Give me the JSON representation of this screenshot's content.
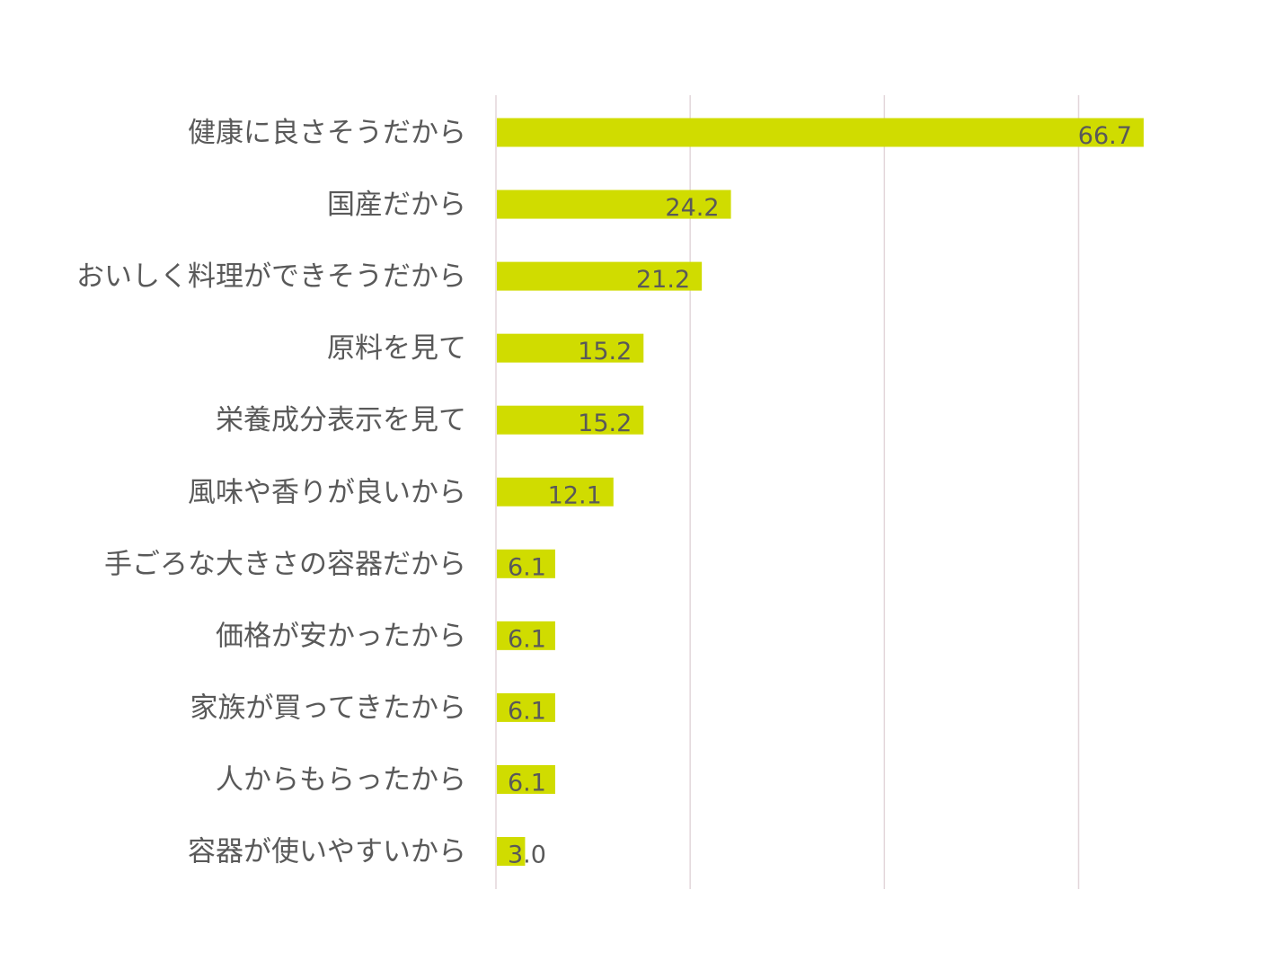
{
  "chart_data": {
    "type": "bar",
    "orientation": "horizontal",
    "categories": [
      "健康に良さそうだから",
      "国産だから",
      "おいしく料理ができそうだから",
      "原料を見て",
      "栄養成分表示を見て",
      "風味や香りが良いから",
      "手ごろな大きさの容器だから",
      "価格が安かったから",
      "家族が買ってきたから",
      "人からもらったから",
      "容器が使いやすいから"
    ],
    "values": [
      66.7,
      24.2,
      21.2,
      15.2,
      15.2,
      12.1,
      6.1,
      6.1,
      6.1,
      6.1,
      3.0
    ],
    "value_labels": [
      "66.7",
      "24.2",
      "21.2",
      "15.2",
      "15.2",
      "12.1",
      "6.1",
      "6.1",
      "6.1",
      "6.1",
      "3.0"
    ],
    "xlim": [
      0,
      80
    ],
    "x_gridlines": [
      0,
      20,
      40,
      60
    ],
    "grid": true,
    "legend": "none",
    "bar_color": "#d0dc00",
    "gridline_color": "#e3d6da",
    "text_color": "#595959"
  }
}
